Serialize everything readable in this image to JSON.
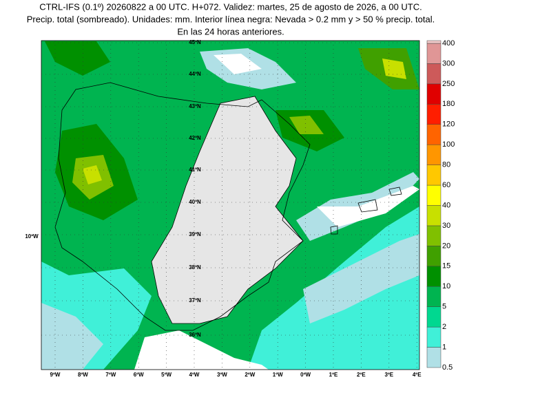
{
  "header": {
    "lines": [
      "CTRL-IFS (0.1º) 20260822 a 00 UTC. H+072. Validez: martes, 25 de agosto de 2026, a 00 UTC.",
      "Precip. total (sombreado). Unidades: mm. Interior línea negra: Nevada > 0.2 mm y > 50 % precip. total.",
      "En las 24 horas anteriores."
    ]
  },
  "map": {
    "lat_labels": [
      "45ºN",
      "44ºN",
      "43ºN",
      "42ºN",
      "41ºN",
      "40ºN",
      "39ºN",
      "38ºN",
      "37ºN",
      "36ºN"
    ],
    "lon_labels": [
      "9ºW",
      "8ºW",
      "7ºW",
      "6ºW",
      "5ºW",
      "4ºW",
      "3ºW",
      "2ºW",
      "1ºW",
      "0ºW",
      "1ºE",
      "2ºE",
      "3ºE",
      "4ºE"
    ],
    "side_label": "10ºW"
  },
  "colorbar": {
    "labels": [
      0.5,
      1,
      2,
      5,
      10,
      15,
      20,
      30,
      40,
      60,
      80,
      100,
      120,
      180,
      250,
      300,
      400
    ],
    "colors": [
      "#b0e0e6",
      "#40f0d8",
      "#00d890",
      "#00b450",
      "#009000",
      "#40a000",
      "#80c000",
      "#c8e000",
      "#ffff00",
      "#ffc800",
      "#ff9600",
      "#ff6400",
      "#ff1e00",
      "#e00000",
      "#cd5a5a",
      "#e09696",
      "#f0c8c8"
    ]
  }
}
